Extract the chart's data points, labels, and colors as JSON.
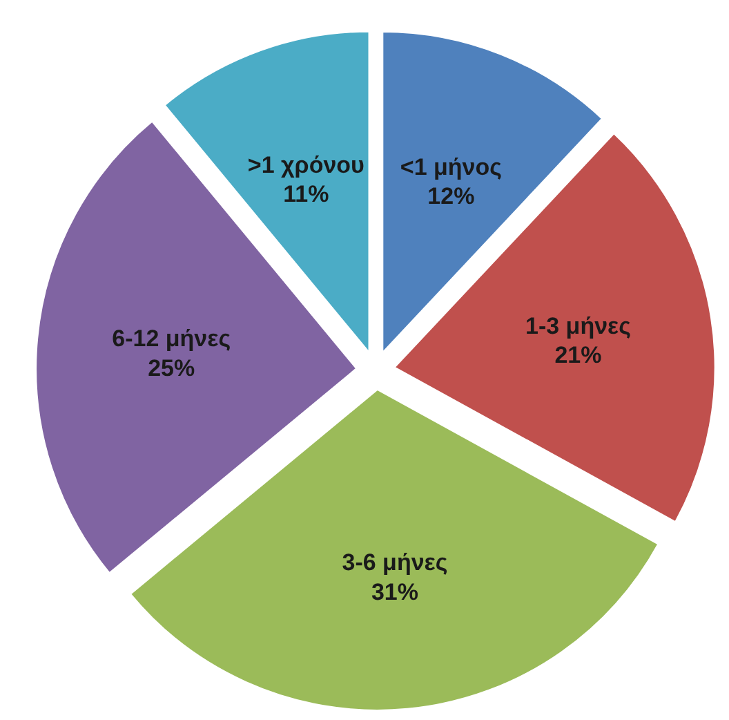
{
  "chart_data": {
    "type": "pie",
    "categories": [
      "<1 μήνος",
      "1-3 μήνες",
      "3-6 μήνες",
      "6-12 μήνες",
      ">1 χρόνου"
    ],
    "values": [
      12,
      21,
      31,
      25,
      11
    ],
    "value_labels": [
      "12%",
      "21%",
      "31%",
      "25%",
      "11%"
    ],
    "colors": [
      "#4f81bd",
      "#c0504d",
      "#9bbb59",
      "#8064a2",
      "#4bacc6"
    ]
  }
}
